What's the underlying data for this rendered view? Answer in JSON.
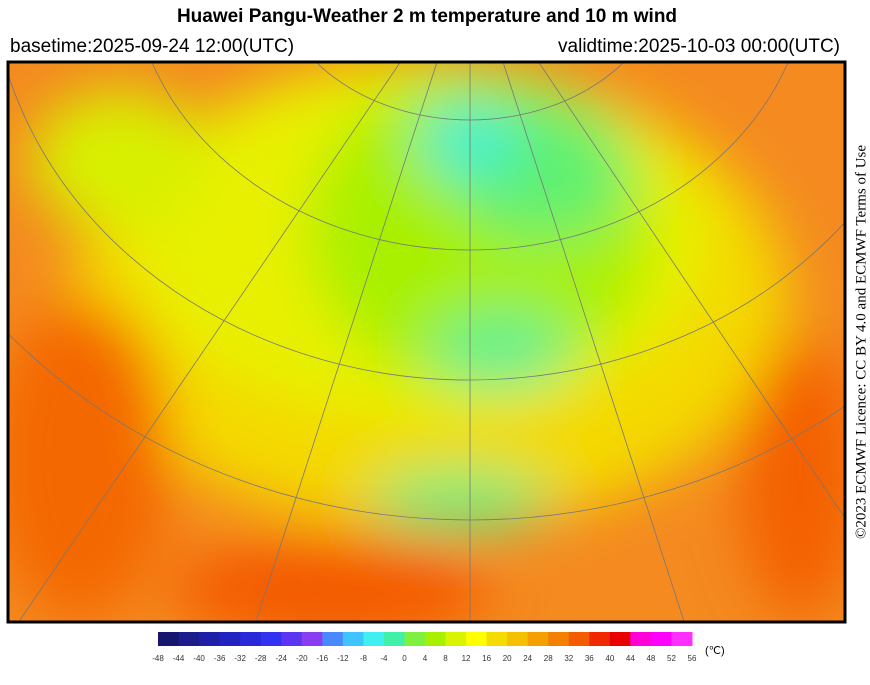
{
  "header": {
    "title": "Huawei Pangu-Weather  2 m temperature and 10 m wind",
    "basetime": "basetime:2025-09-24 12:00(UTC)",
    "validtime": "validtime:2025-10-03 00:00(UTC)"
  },
  "licence": "©2023 ECMWF Licence: CC BY 4.0 and ECMWF Terms of Use",
  "colorbar": {
    "ticks": [
      -48,
      -44,
      -40,
      -36,
      -32,
      -28,
      -24,
      -20,
      -16,
      -12,
      -8,
      -4,
      0,
      4,
      8,
      12,
      16,
      20,
      24,
      28,
      32,
      36,
      40,
      44,
      48,
      52,
      56
    ],
    "colors": [
      "#16166e",
      "#1c1c8c",
      "#1e1ea8",
      "#2222c0",
      "#2828d8",
      "#3232f0",
      "#5a36f0",
      "#8a3cf0",
      "#4a88ff",
      "#40c4ff",
      "#40f0f0",
      "#40f0a8",
      "#80f040",
      "#a8f000",
      "#d8f400",
      "#ffff00",
      "#f4dc00",
      "#f4c000",
      "#f4a000",
      "#f48000",
      "#f45c00",
      "#f02800",
      "#e80000",
      "#ff00d8",
      "#ff00ff",
      "#ff30ff"
    ],
    "unit": "(℃)"
  }
}
